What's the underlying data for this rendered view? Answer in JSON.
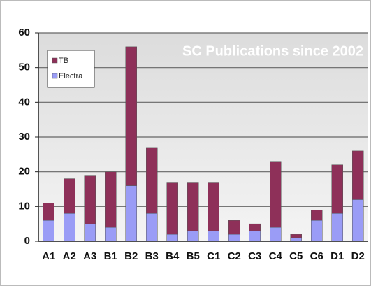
{
  "chart_data": {
    "type": "bar",
    "stacked": true,
    "title": "SC Publications since 2002",
    "categories": [
      "A1",
      "A2",
      "A3",
      "B1",
      "B2",
      "B3",
      "B4",
      "B5",
      "C1",
      "C2",
      "C3",
      "C4",
      "C5",
      "C6",
      "D1",
      "D2"
    ],
    "series": [
      {
        "name": "TB",
        "color": "#8e3059",
        "values": [
          5,
          10,
          14,
          16,
          40,
          19,
          15,
          14,
          14,
          4,
          2,
          19,
          1,
          3,
          14,
          14
        ]
      },
      {
        "name": "Electra",
        "color": "#9a9cf6",
        "values": [
          6,
          8,
          5,
          4,
          16,
          8,
          2,
          3,
          3,
          2,
          3,
          4,
          1,
          6,
          8,
          12
        ]
      }
    ],
    "ylim": [
      0,
      60
    ],
    "yticks": [
      0,
      10,
      20,
      30,
      40,
      50,
      60
    ],
    "grid": true,
    "legend": "top-left"
  }
}
